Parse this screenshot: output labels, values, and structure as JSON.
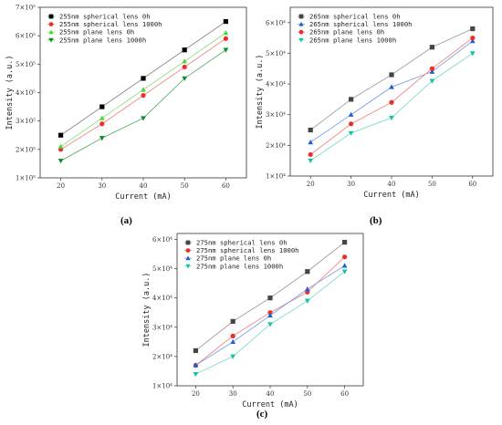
{
  "panel_labels": [
    "(a)",
    "(b)",
    "(c)"
  ],
  "chart_data": [
    {
      "type": "line",
      "panel": "(a)",
      "xlabel": "Current (mA)",
      "ylabel": "Intensity (a.u.)",
      "x": [
        20,
        30,
        40,
        50,
        60
      ],
      "xlim": [
        15,
        65
      ],
      "ylim": [
        100000,
        700000
      ],
      "ytick_labels": [
        "1×10⁵",
        "2×10⁵",
        "3×10⁵",
        "4×10⁵",
        "5×10⁵",
        "6×10⁵",
        "7×10⁵"
      ],
      "xtick_labels": [
        "20",
        "30",
        "40",
        "50",
        "60"
      ],
      "legend_position": "top-left",
      "series": [
        {
          "name": "255nm spherical lens 0h",
          "marker": "square",
          "color": "#000000",
          "line_color": "#8a8a8a",
          "values": [
            250000,
            350000,
            450000,
            550000,
            650000
          ]
        },
        {
          "name": "255nm spherical lens 1000h",
          "marker": "circle",
          "color": "#e8302a",
          "line_color": "#f08a85",
          "values": [
            200000,
            290000,
            390000,
            490000,
            590000
          ]
        },
        {
          "name": "255nm plane lens 0h",
          "marker": "triangle-up",
          "color": "#4cd43a",
          "line_color": "#8fe083",
          "values": [
            210000,
            310000,
            410000,
            510000,
            610000
          ]
        },
        {
          "name": "255nm plane lens 1000h",
          "marker": "triangle-down",
          "color": "#0d8a2a",
          "line_color": "#5fae6d",
          "values": [
            160000,
            240000,
            310000,
            450000,
            550000
          ]
        }
      ]
    },
    {
      "type": "line",
      "panel": "(b)",
      "xlabel": "Current (mA)",
      "ylabel": "Intensity (a.u.)",
      "x": [
        20,
        30,
        40,
        50,
        60
      ],
      "xlim": [
        15,
        65
      ],
      "ylim": [
        10000,
        65000
      ],
      "ytick_labels": [
        "1×10⁴",
        "2×10⁴",
        "3×10⁴",
        "4×10⁴",
        "5×10⁴",
        "6×10⁴"
      ],
      "xtick_labels": [
        "20",
        "30",
        "40",
        "50",
        "60"
      ],
      "legend_position": "top-left",
      "series": [
        {
          "name": "265nm spherical lens 0h",
          "marker": "square",
          "color": "#444444",
          "line_color": "#a0a0a0",
          "values": [
            25000,
            35000,
            43000,
            52000,
            58000
          ]
        },
        {
          "name": "265nm spherical lens 1000h",
          "marker": "triangle-up",
          "color": "#1f5fd6",
          "line_color": "#7fa3e8",
          "values": [
            21000,
            30000,
            39000,
            44000,
            54000
          ]
        },
        {
          "name": "265nm plane lens 0h",
          "marker": "circle",
          "color": "#e8302a",
          "line_color": "#f08a85",
          "values": [
            17000,
            27000,
            34000,
            45000,
            55000
          ]
        },
        {
          "name": "265nm plane lens 1000h",
          "marker": "triangle-down",
          "color": "#17c2a0",
          "line_color": "#7fdcc8",
          "values": [
            15000,
            24000,
            29000,
            41000,
            50000
          ]
        }
      ]
    },
    {
      "type": "line",
      "panel": "(c)",
      "xlabel": "Current (mA)",
      "ylabel": "Intensity (a.u.)",
      "x": [
        20,
        30,
        40,
        50,
        60
      ],
      "xlim": [
        15,
        65
      ],
      "ylim": [
        10000,
        62000
      ],
      "ytick_labels": [
        "1×10⁴",
        "2×10⁴",
        "3×10⁴",
        "4×10⁴",
        "5×10⁴",
        "6×10⁴"
      ],
      "xtick_labels": [
        "20",
        "30",
        "40",
        "50",
        "60"
      ],
      "legend_position": "top-left",
      "series": [
        {
          "name": "275nm spherical lens 0h",
          "marker": "square",
          "color": "#444444",
          "line_color": "#a0a0a0",
          "values": [
            22000,
            32000,
            40000,
            49000,
            59000
          ]
        },
        {
          "name": "275nm spherical lens 1000h",
          "marker": "circle",
          "color": "#e8302a",
          "line_color": "#f08a85",
          "values": [
            17000,
            27000,
            35000,
            42000,
            54000
          ]
        },
        {
          "name": "275nm plane lens 0h",
          "marker": "triangle-up",
          "color": "#1f5fd6",
          "line_color": "#7fa3e8",
          "values": [
            17000,
            25000,
            34000,
            43000,
            51000
          ]
        },
        {
          "name": "275nm plane lens 1000h",
          "marker": "triangle-down",
          "color": "#17c2a0",
          "line_color": "#7fdcc8",
          "values": [
            14000,
            20000,
            31000,
            39000,
            49000
          ]
        }
      ]
    }
  ]
}
